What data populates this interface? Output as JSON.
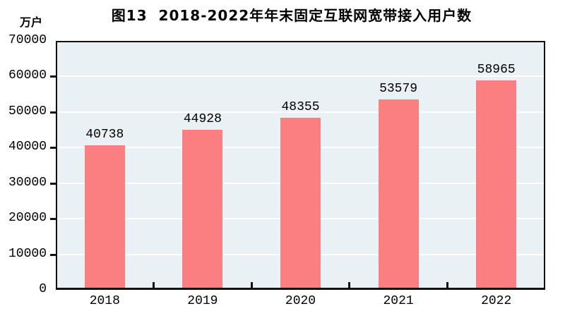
{
  "title": "图13  2018-2022年年末固定互联网宽带接入用户数",
  "unit_label": "万户",
  "colors": {
    "bar": "#fb7e80",
    "plot_bg": "#eaf1f4",
    "grid": "#ffffff",
    "axis": "#111111",
    "text": "#000000"
  },
  "chart_data": {
    "type": "bar",
    "title": "图13  2018-2022年年末固定互联网宽带接入用户数",
    "unit": "万户",
    "categories": [
      "2018",
      "2019",
      "2020",
      "2021",
      "2022"
    ],
    "values": [
      40738,
      44928,
      48355,
      53579,
      58965
    ],
    "xlabel": "",
    "ylabel": "万户",
    "ylim": [
      0,
      70000
    ],
    "ytick_step": 10000,
    "grid": true,
    "gridline_color": "#ffffff",
    "legend": false,
    "bar_labels": true
  }
}
